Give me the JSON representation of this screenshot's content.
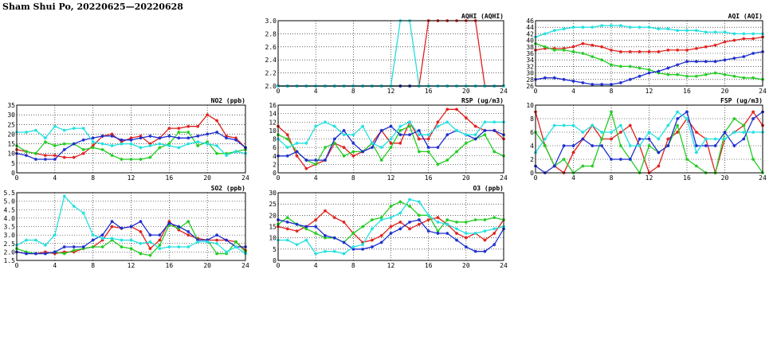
{
  "page": {
    "title": "Sham Shui Po, 20220625—20220628"
  },
  "colors": {
    "red": "#e0201c",
    "green": "#22cc22",
    "blue": "#1c2ccf",
    "cyan": "#22e0e0"
  },
  "chart_data": [
    {
      "id": "aqhi",
      "type": "line",
      "title": "AQHI (AQHI)",
      "xlim": [
        0,
        24
      ],
      "ylim": [
        2.0,
        3.0
      ],
      "xticks": [
        0,
        4,
        8,
        12,
        16,
        20,
        24
      ],
      "yticks": [
        "2.0",
        "2.2",
        "2.4",
        "2.6",
        "2.8",
        "3.0"
      ],
      "grid": true,
      "series": [
        {
          "color": "red",
          "values": [
            2,
            2,
            2,
            2,
            2,
            2,
            2,
            2,
            2,
            2,
            2,
            2,
            2,
            2,
            2,
            2,
            3,
            3,
            3,
            3,
            3,
            3,
            2,
            2,
            2
          ]
        },
        {
          "color": "green",
          "values": [
            2,
            2,
            2,
            2,
            2,
            2,
            2,
            2,
            2,
            2,
            2,
            2,
            2,
            2,
            2,
            2,
            2,
            2,
            2,
            2,
            2,
            2,
            2,
            2,
            2
          ]
        },
        {
          "color": "blue",
          "values": [
            2,
            2,
            2,
            2,
            2,
            2,
            2,
            2,
            2,
            2,
            2,
            2,
            2,
            2,
            2,
            2,
            2,
            2,
            2,
            2,
            2,
            2,
            2,
            2,
            2
          ]
        },
        {
          "color": "cyan",
          "values": [
            2,
            2,
            2,
            2,
            2,
            2,
            2,
            2,
            2,
            2,
            2,
            2,
            2,
            3,
            3,
            2,
            2,
            2,
            2,
            2,
            2,
            2,
            2,
            2,
            2
          ]
        }
      ]
    },
    {
      "id": "aqi",
      "type": "line",
      "title": "AQI (AQI)",
      "xlim": [
        0,
        24
      ],
      "ylim": [
        26,
        46
      ],
      "xticks": [
        0,
        4,
        8,
        12,
        16,
        20,
        24
      ],
      "yticks": [
        "26",
        "28",
        "30",
        "32",
        "34",
        "36",
        "38",
        "40",
        "42",
        "44",
        "46"
      ],
      "grid": true,
      "series": [
        {
          "color": "red",
          "values": [
            37,
            37.5,
            37.5,
            37.5,
            38,
            39,
            38.5,
            38,
            37,
            36.5,
            36.5,
            36.5,
            36.5,
            36.5,
            37,
            37,
            37,
            37.5,
            38,
            38.5,
            39.5,
            40,
            40.5,
            40.5,
            41
          ]
        },
        {
          "color": "green",
          "values": [
            39,
            38,
            37,
            37,
            36.5,
            36,
            35,
            34,
            32.5,
            32,
            32,
            31.5,
            31,
            30,
            29.5,
            29.5,
            29,
            29,
            29.5,
            30,
            29.5,
            29,
            28.5,
            28.5,
            28
          ]
        },
        {
          "color": "blue",
          "values": [
            28,
            28.5,
            28.5,
            28,
            27.5,
            27,
            26.5,
            26.5,
            26.5,
            27,
            28,
            29,
            30,
            30.5,
            31.5,
            32.5,
            33.5,
            33.5,
            33.5,
            33.5,
            34,
            34.5,
            35,
            36,
            36.5
          ]
        },
        {
          "color": "cyan",
          "values": [
            41,
            42,
            43,
            43.5,
            44,
            44,
            44,
            44.5,
            44.5,
            44.5,
            44,
            44,
            44,
            43.5,
            43.5,
            43,
            43,
            43,
            42.5,
            42.5,
            42.5,
            42,
            42,
            42,
            42
          ]
        }
      ]
    },
    {
      "id": "no2",
      "type": "line",
      "title": "NO2 (ppb)",
      "xlim": [
        0,
        24
      ],
      "ylim": [
        0,
        35
      ],
      "xticks": [
        0,
        4,
        8,
        12,
        16,
        20,
        24
      ],
      "yticks": [
        "0",
        "5",
        "10",
        "15",
        "20",
        "25",
        "30",
        "35"
      ],
      "grid": true,
      "series": [
        {
          "color": "red",
          "values": [
            12,
            11,
            10,
            9,
            9,
            8,
            8,
            10,
            14,
            19,
            20,
            16,
            18,
            19,
            15,
            18,
            23,
            23,
            24,
            24,
            30,
            27,
            19,
            18,
            13
          ]
        },
        {
          "color": "green",
          "values": [
            14,
            11,
            10,
            16,
            14,
            15,
            15,
            12,
            13,
            12,
            9,
            7,
            7,
            7,
            8,
            13,
            15,
            21,
            21,
            14,
            16,
            10,
            10,
            11,
            12
          ]
        },
        {
          "color": "blue",
          "values": [
            10,
            9,
            7,
            7,
            7,
            12,
            15,
            17,
            18,
            19,
            19,
            17,
            17,
            18,
            19,
            18,
            19,
            18,
            18,
            19,
            20,
            21,
            18,
            17,
            13
          ]
        },
        {
          "color": "cyan",
          "values": [
            21,
            21,
            22,
            18,
            24,
            22,
            23,
            23,
            16,
            15,
            14,
            15,
            15,
            13,
            14,
            15,
            14,
            13,
            15,
            16,
            15,
            14,
            9,
            11,
            10
          ]
        }
      ]
    },
    {
      "id": "rsp",
      "type": "line",
      "title": "RSP (ug/m3)",
      "xlim": [
        0,
        24
      ],
      "ylim": [
        0,
        16
      ],
      "xticks": [
        0,
        4,
        8,
        12,
        16,
        20,
        24
      ],
      "yticks": [
        "0",
        "2",
        "4",
        "6",
        "8",
        "10",
        "12",
        "14",
        "16"
      ],
      "grid": true,
      "series": [
        {
          "color": "red",
          "values": [
            11,
            9,
            4,
            1,
            2,
            3,
            7,
            6,
            4,
            5,
            7,
            10,
            7,
            7,
            12,
            8,
            8,
            12,
            15,
            15,
            13,
            11,
            10,
            10,
            8
          ]
        },
        {
          "color": "green",
          "values": [
            9,
            8,
            5,
            3,
            2,
            6,
            7,
            4,
            5,
            5,
            7,
            3,
            6,
            10,
            11,
            5,
            5,
            2,
            3,
            5,
            7,
            8,
            9,
            5,
            4
          ]
        },
        {
          "color": "blue",
          "values": [
            4,
            4,
            5,
            3,
            3,
            3,
            8,
            10,
            7,
            5,
            6,
            10,
            11,
            9,
            9,
            10,
            6,
            6,
            9,
            10,
            9,
            8,
            10,
            10,
            9
          ]
        },
        {
          "color": "cyan",
          "values": [
            8,
            6,
            7,
            7,
            11,
            12,
            11,
            9,
            9,
            11,
            7,
            6,
            8,
            11,
            12,
            9,
            9,
            11,
            12,
            10,
            9,
            9,
            12,
            12,
            12
          ]
        }
      ]
    },
    {
      "id": "fsp",
      "type": "line",
      "title": "FSP (ug/m3)",
      "xlim": [
        0,
        24
      ],
      "ylim": [
        0,
        10
      ],
      "xticks": [
        0,
        4,
        8,
        12,
        16,
        20,
        24
      ],
      "yticks": [
        "0",
        "2",
        "4",
        "6",
        "8",
        "10"
      ],
      "grid": true,
      "series": [
        {
          "color": "red",
          "values": [
            9,
            4,
            1,
            0,
            3,
            5,
            7,
            5,
            5,
            6,
            7,
            4,
            0,
            1,
            5,
            6,
            8,
            6,
            5,
            0,
            5,
            6,
            7,
            9,
            7
          ]
        },
        {
          "color": "green",
          "values": [
            6,
            4,
            1,
            2,
            0,
            1,
            1,
            5,
            9,
            4,
            2,
            0,
            4,
            3,
            4,
            7,
            2,
            1,
            0,
            0,
            6,
            8,
            7,
            2,
            0
          ]
        },
        {
          "color": "blue",
          "values": [
            1,
            0,
            1,
            4,
            4,
            5,
            4,
            4,
            2,
            2,
            2,
            5,
            5,
            3,
            4,
            8,
            9,
            4,
            4,
            4,
            6,
            4,
            5,
            8,
            9
          ]
        },
        {
          "color": "cyan",
          "values": [
            3,
            5,
            7,
            7,
            7,
            6,
            7,
            6,
            6,
            7,
            4,
            4,
            6,
            5,
            7,
            9,
            8,
            3,
            5,
            5,
            5,
            6,
            6,
            6,
            6
          ]
        }
      ]
    },
    {
      "id": "so2",
      "type": "line",
      "title": "SO2 (ppb)",
      "xlim": [
        0,
        24
      ],
      "ylim": [
        1.5,
        5.5
      ],
      "xticks": [
        0,
        4,
        8,
        12,
        16,
        20,
        24
      ],
      "yticks": [
        "1.5",
        "2.0",
        "2.5",
        "3.0",
        "3.5",
        "4.0",
        "4.5",
        "5.0",
        "5.5"
      ],
      "grid": true,
      "series": [
        {
          "color": "red",
          "values": [
            2.0,
            1.9,
            1.9,
            2.0,
            1.9,
            2.0,
            2.0,
            2.2,
            2.3,
            2.7,
            3.5,
            3.4,
            3.5,
            3.2,
            2.2,
            2.7,
            3.8,
            3.3,
            3.0,
            2.8,
            2.7,
            2.7,
            2.7,
            2.6,
            2.1
          ]
        },
        {
          "color": "green",
          "values": [
            2.2,
            2.0,
            1.9,
            1.9,
            2.0,
            1.9,
            2.1,
            2.2,
            2.3,
            2.3,
            2.7,
            2.3,
            2.2,
            1.9,
            1.8,
            2.4,
            3.6,
            3.4,
            3.8,
            2.7,
            2.7,
            1.9,
            1.9,
            2.6,
            2.0
          ]
        },
        {
          "color": "blue",
          "values": [
            2.0,
            1.9,
            1.9,
            1.9,
            2.0,
            2.3,
            2.3,
            2.3,
            2.7,
            3.0,
            3.8,
            3.4,
            3.5,
            3.8,
            3.0,
            3.0,
            3.7,
            3.5,
            3.2,
            2.7,
            2.7,
            3.0,
            2.7,
            2.3,
            2.3
          ]
        },
        {
          "color": "cyan",
          "values": [
            2.4,
            2.7,
            2.7,
            2.4,
            3.0,
            5.3,
            4.7,
            4.3,
            3.0,
            2.8,
            2.8,
            2.7,
            2.7,
            2.5,
            2.6,
            2.2,
            2.3,
            2.3,
            2.3,
            2.6,
            2.6,
            2.5,
            2.0,
            2.3,
            1.9
          ]
        }
      ]
    },
    {
      "id": "o3",
      "type": "line",
      "title": "O3 (ppb)",
      "xlim": [
        0,
        24
      ],
      "ylim": [
        0,
        30
      ],
      "xticks": [
        0,
        4,
        8,
        12,
        16,
        20,
        24
      ],
      "yticks": [
        "0",
        "5",
        "10",
        "15",
        "20",
        "25",
        "30"
      ],
      "grid": true,
      "series": [
        {
          "color": "red",
          "values": [
            15,
            14,
            13,
            15,
            18,
            22,
            19,
            17,
            12,
            8,
            9,
            11,
            15,
            17,
            14,
            16,
            18,
            19,
            16,
            12,
            10,
            12,
            9,
            12,
            18
          ]
        },
        {
          "color": "green",
          "values": [
            16,
            19,
            16,
            14,
            12,
            10,
            10,
            8,
            12,
            15,
            18,
            19,
            24,
            26,
            24,
            20,
            20,
            13,
            18,
            17,
            17,
            18,
            18,
            19,
            18
          ]
        },
        {
          "color": "blue",
          "values": [
            18,
            17,
            16,
            15,
            15,
            11,
            10,
            8,
            5,
            5,
            6,
            8,
            12,
            14,
            17,
            18,
            13,
            12,
            12,
            9,
            6,
            4,
            4,
            7,
            14
          ]
        },
        {
          "color": "cyan",
          "values": [
            9,
            9,
            7,
            9,
            3,
            4,
            4,
            3,
            6,
            7,
            14,
            18,
            19,
            21,
            27,
            26,
            20,
            17,
            16,
            14,
            12,
            12,
            13,
            14,
            15
          ]
        }
      ]
    }
  ]
}
